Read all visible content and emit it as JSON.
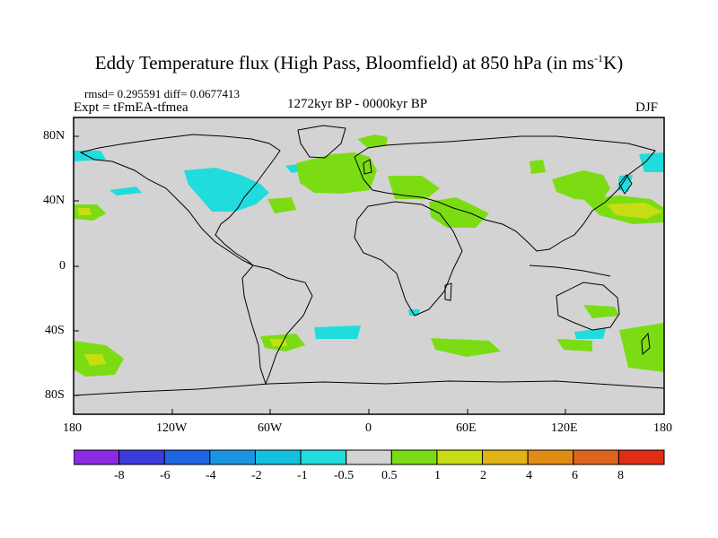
{
  "title": {
    "main": "Eddy Temperature flux (High Pass, Bloomfield) at 850 hPa (in ms",
    "sup": "-1",
    "tail": "K)"
  },
  "stats": "rmsd= 0.295591 diff= 0.0677413",
  "experiment": "Expt = tFmEA-tfmea",
  "period": "1272kyr BP - 0000kyr BP",
  "season": "DJF",
  "y_axis_labels": [
    "80N",
    "40N",
    "0",
    "40S",
    "80S"
  ],
  "x_axis_labels": [
    "180",
    "120W",
    "60W",
    "0",
    "60E",
    "120E",
    "180"
  ],
  "colorbar": {
    "labels": [
      "-8",
      "-6",
      "-4",
      "-2",
      "-1",
      "-0.5",
      "0.5",
      "1",
      "2",
      "4",
      "6",
      "8"
    ],
    "colors": [
      "#8a2be2",
      "#3b3bdc",
      "#1f64e0",
      "#1a96e0",
      "#14c0e0",
      "#20dcdc",
      "#d3d3d3",
      "#7cdc14",
      "#c8dc14",
      "#e0b414",
      "#e08c14",
      "#e0641e",
      "#e02d14"
    ]
  },
  "palette": {
    "background": "#d3d3d3",
    "cyan": "#20dcdc",
    "green": "#7cdc14",
    "yellow": "#c8dc14"
  }
}
